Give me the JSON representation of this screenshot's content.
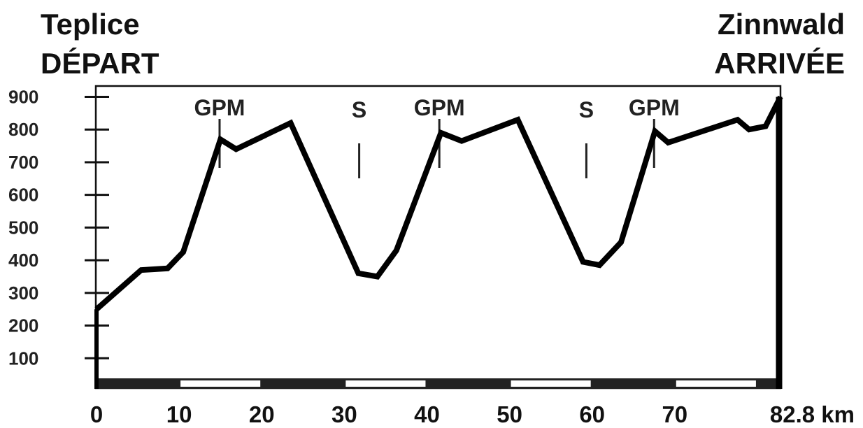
{
  "header": {
    "start_town": "Teplice",
    "start_label": "DÉPART",
    "end_town": "Zinnwald",
    "end_label": "ARRIVÉE"
  },
  "chart_data": {
    "type": "area",
    "title": "",
    "xlabel": "",
    "ylabel": "",
    "x_unit": "km",
    "xlim": [
      0,
      82.8
    ],
    "ylim": [
      0,
      950
    ],
    "y_ticks": [
      "100",
      "200",
      "300",
      "400",
      "500",
      "600",
      "700",
      "800",
      "900"
    ],
    "x_ticks": [
      "0",
      "10",
      "20",
      "30",
      "40",
      "50",
      "60",
      "70"
    ],
    "x_end_label": "82.8 km",
    "grid": false,
    "series": [
      {
        "x": [
          0,
          5.4,
          8.6,
          10.5,
          15,
          16.9,
          23.5,
          31.7,
          34,
          36.3,
          41.7,
          44.2,
          51,
          58.9,
          60.9,
          63.5,
          67.6,
          69.2,
          77.6,
          79,
          81,
          82.8
        ],
        "y": [
          250,
          370,
          375,
          425,
          770,
          740,
          820,
          360,
          350,
          430,
          790,
          765,
          830,
          395,
          385,
          455,
          795,
          760,
          830,
          800,
          810,
          900
        ]
      }
    ],
    "markers": [
      {
        "label": "GPM",
        "x": 14.9
      },
      {
        "label": "S",
        "x": 31.8
      },
      {
        "label": "GPM",
        "x": 41.5
      },
      {
        "label": "S",
        "x": 59.3
      },
      {
        "label": "GPM",
        "x": 67.5
      }
    ],
    "colors": {
      "line": "#000000",
      "ink": "#111111"
    }
  }
}
